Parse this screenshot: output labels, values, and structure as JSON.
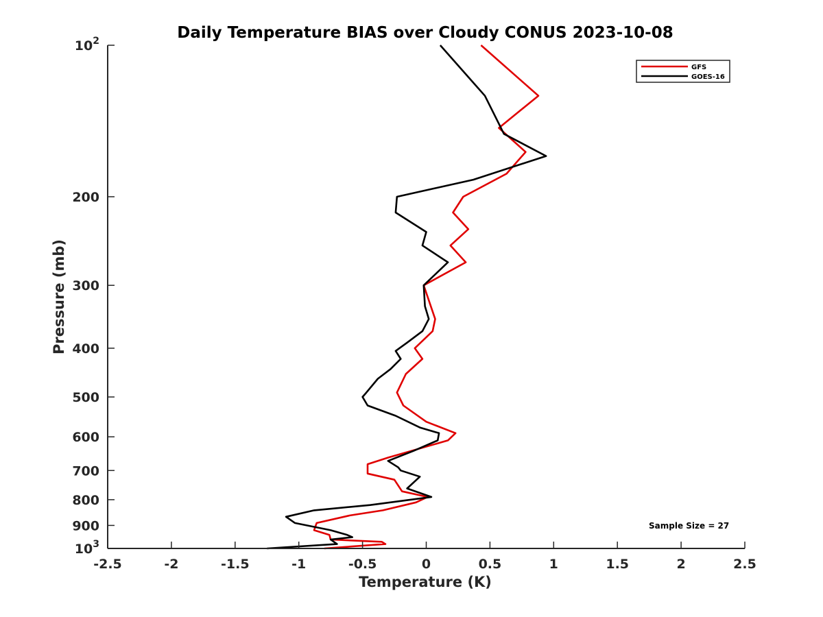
{
  "chart_data": {
    "type": "line",
    "title": "Daily Temperature BIAS over Cloudy CONUS 2023-10-08",
    "xlabel": "Temperature (K)",
    "ylabel": "Pressure (mb)",
    "xlim": [
      -2.5,
      2.5
    ],
    "ylim": [
      100,
      1000
    ],
    "yscale": "log",
    "yreversed": true,
    "grid": false,
    "legend_position": "top-right",
    "annotation": "Sample Size = 27",
    "x_ticks": [
      -2.5,
      -2,
      -1.5,
      -1,
      -0.5,
      0,
      0.5,
      1,
      1.5,
      2,
      2.5
    ],
    "x_tick_labels": [
      "-2.5",
      "-2",
      "-1.5",
      "-1",
      "-0.5",
      "0",
      "0.5",
      "1",
      "1.5",
      "2",
      "2.5"
    ],
    "y_ticks": [
      100,
      200,
      300,
      400,
      500,
      600,
      700,
      800,
      900,
      1000
    ],
    "y_tick_labels": [
      {
        "base": "10",
        "exp": "2"
      },
      {
        "base": "200",
        "exp": ""
      },
      {
        "base": "300",
        "exp": ""
      },
      {
        "base": "400",
        "exp": ""
      },
      {
        "base": "500",
        "exp": ""
      },
      {
        "base": "600",
        "exp": ""
      },
      {
        "base": "700",
        "exp": ""
      },
      {
        "base": "800",
        "exp": ""
      },
      {
        "base": "900",
        "exp": ""
      },
      {
        "base": "10",
        "exp": "3"
      }
    ],
    "series": [
      {
        "name": "GFS",
        "color": "#e00000",
        "points": [
          [
            0.43,
            100
          ],
          [
            0.88,
            126
          ],
          [
            0.57,
            146
          ],
          [
            0.78,
            163
          ],
          [
            0.63,
            180
          ],
          [
            0.29,
            200
          ],
          [
            0.21,
            215
          ],
          [
            0.33,
            232
          ],
          [
            0.19,
            250
          ],
          [
            0.31,
            270
          ],
          [
            -0.02,
            300
          ],
          [
            0.07,
            350
          ],
          [
            0.05,
            370
          ],
          [
            -0.09,
            400
          ],
          [
            -0.03,
            420
          ],
          [
            -0.16,
            450
          ],
          [
            -0.23,
            490
          ],
          [
            -0.18,
            520
          ],
          [
            0.0,
            560
          ],
          [
            0.23,
            590
          ],
          [
            0.17,
            610
          ],
          [
            -0.3,
            660
          ],
          [
            -0.46,
            680
          ],
          [
            -0.46,
            710
          ],
          [
            -0.25,
            730
          ],
          [
            -0.19,
            770
          ],
          [
            0.01,
            790
          ],
          [
            -0.08,
            810
          ],
          [
            -0.34,
            840
          ],
          [
            -0.6,
            860
          ],
          [
            -0.86,
            890
          ],
          [
            -0.88,
            920
          ],
          [
            -0.76,
            940
          ],
          [
            -0.75,
            960
          ],
          [
            -0.35,
            970
          ],
          [
            -0.32,
            980
          ],
          [
            -0.8,
            1000
          ]
        ]
      },
      {
        "name": "GOES-16",
        "color": "#000000",
        "points": [
          [
            0.11,
            100
          ],
          [
            0.46,
            126
          ],
          [
            0.61,
            150
          ],
          [
            0.94,
            166
          ],
          [
            0.37,
            185
          ],
          [
            -0.23,
            200
          ],
          [
            -0.24,
            215
          ],
          [
            0.0,
            235
          ],
          [
            -0.03,
            250
          ],
          [
            0.17,
            270
          ],
          [
            -0.02,
            300
          ],
          [
            -0.01,
            330
          ],
          [
            0.02,
            350
          ],
          [
            -0.03,
            370
          ],
          [
            -0.15,
            390
          ],
          [
            -0.24,
            405
          ],
          [
            -0.2,
            420
          ],
          [
            -0.28,
            440
          ],
          [
            -0.38,
            460
          ],
          [
            -0.47,
            490
          ],
          [
            -0.5,
            500
          ],
          [
            -0.46,
            520
          ],
          [
            -0.24,
            545
          ],
          [
            -0.05,
            575
          ],
          [
            0.1,
            590
          ],
          [
            0.09,
            610
          ],
          [
            -0.1,
            640
          ],
          [
            -0.3,
            670
          ],
          [
            -0.22,
            690
          ],
          [
            -0.2,
            700
          ],
          [
            -0.05,
            720
          ],
          [
            -0.15,
            760
          ],
          [
            0.04,
            790
          ],
          [
            -0.44,
            820
          ],
          [
            -0.88,
            840
          ],
          [
            -1.1,
            865
          ],
          [
            -1.03,
            890
          ],
          [
            -0.75,
            920
          ],
          [
            -0.62,
            940
          ],
          [
            -0.58,
            950
          ],
          [
            -0.75,
            960
          ],
          [
            -0.7,
            980
          ],
          [
            -1.25,
            1000
          ]
        ]
      }
    ]
  }
}
